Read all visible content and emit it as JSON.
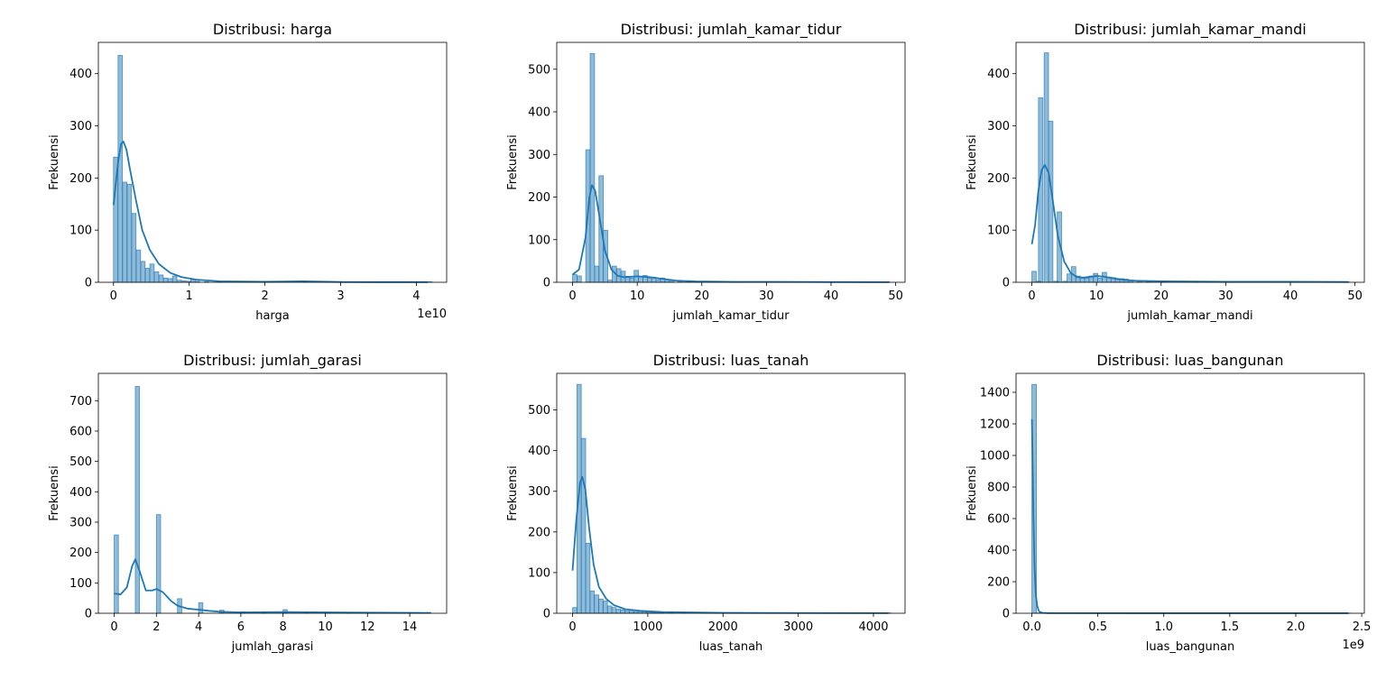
{
  "style": {
    "bar_color": "#1f77b4",
    "kde_color": "#1f77b4"
  },
  "chart_data": [
    {
      "type": "bar",
      "title": "Distribusi: harga",
      "xlabel": "harga",
      "ylabel": "Frekuensi",
      "offset_label": "1e10",
      "xlim": [
        -0.2,
        4.4
      ],
      "ylim": [
        0,
        460
      ],
      "xticks": [
        0,
        1,
        2,
        3,
        4
      ],
      "xtick_labels": [
        "0",
        "1",
        "2",
        "3",
        "4"
      ],
      "yticks": [
        0,
        100,
        200,
        300,
        400
      ],
      "ytick_labels": [
        "0",
        "100",
        "200",
        "300",
        "400"
      ],
      "bin_width": 0.0575,
      "bins": [
        [
          0.0,
          240
        ],
        [
          0.06,
          435
        ],
        [
          0.12,
          192
        ],
        [
          0.18,
          188
        ],
        [
          0.24,
          132
        ],
        [
          0.3,
          62
        ],
        [
          0.36,
          40
        ],
        [
          0.42,
          27
        ],
        [
          0.48,
          35
        ],
        [
          0.54,
          20
        ],
        [
          0.6,
          14
        ],
        [
          0.66,
          8
        ],
        [
          0.72,
          7
        ],
        [
          0.78,
          12
        ],
        [
          0.84,
          4
        ],
        [
          0.9,
          3
        ],
        [
          0.96,
          2
        ],
        [
          1.02,
          5
        ],
        [
          1.08,
          2
        ],
        [
          1.2,
          1
        ],
        [
          1.38,
          1
        ],
        [
          2.5,
          1
        ],
        [
          4.15,
          1
        ]
      ],
      "kde": [
        [
          0,
          148
        ],
        [
          0.06,
          230
        ],
        [
          0.1,
          265
        ],
        [
          0.13,
          270
        ],
        [
          0.17,
          255
        ],
        [
          0.22,
          215
        ],
        [
          0.3,
          155
        ],
        [
          0.38,
          100
        ],
        [
          0.48,
          62
        ],
        [
          0.6,
          35
        ],
        [
          0.75,
          18
        ],
        [
          0.9,
          10
        ],
        [
          1.1,
          5
        ],
        [
          1.4,
          2
        ],
        [
          2.0,
          1
        ],
        [
          2.5,
          2
        ],
        [
          3.0,
          0.5
        ],
        [
          3.5,
          0.3
        ],
        [
          4.15,
          0.3
        ]
      ]
    },
    {
      "type": "bar",
      "title": "Distribusi: jumlah_kamar_tidur",
      "xlabel": "jumlah_kamar_tidur",
      "ylabel": "Frekuensi",
      "offset_label": "",
      "xlim": [
        -2.45,
        51.45
      ],
      "ylim": [
        0,
        563
      ],
      "xticks": [
        0,
        10,
        20,
        30,
        40,
        50
      ],
      "xtick_labels": [
        "0",
        "10",
        "20",
        "30",
        "40",
        "50"
      ],
      "yticks": [
        0,
        100,
        200,
        300,
        400,
        500
      ],
      "ytick_labels": [
        "0",
        "100",
        "200",
        "300",
        "400",
        "500"
      ],
      "bin_width": 0.68,
      "bins": [
        [
          0.0,
          18
        ],
        [
          0.68,
          15
        ],
        [
          2.04,
          311
        ],
        [
          2.72,
          537
        ],
        [
          3.4,
          38
        ],
        [
          4.08,
          250
        ],
        [
          4.76,
          122
        ],
        [
          5.44,
          5
        ],
        [
          6.12,
          38
        ],
        [
          6.8,
          32
        ],
        [
          7.48,
          26
        ],
        [
          8.16,
          14
        ],
        [
          8.84,
          10
        ],
        [
          9.52,
          28
        ],
        [
          10.2,
          14
        ],
        [
          10.88,
          16
        ],
        [
          11.56,
          10
        ],
        [
          12.24,
          12
        ],
        [
          12.92,
          6
        ],
        [
          13.6,
          10
        ],
        [
          14.28,
          6
        ],
        [
          15.0,
          4
        ],
        [
          16.3,
          3
        ],
        [
          17.7,
          2
        ],
        [
          19.0,
          2
        ],
        [
          21.0,
          1
        ],
        [
          25.0,
          1
        ],
        [
          30.0,
          1
        ],
        [
          35.0,
          1
        ],
        [
          40.0,
          1
        ],
        [
          45.0,
          1
        ],
        [
          48.4,
          1
        ]
      ],
      "kde": [
        [
          0,
          18
        ],
        [
          1,
          30
        ],
        [
          2,
          105
        ],
        [
          2.6,
          200
        ],
        [
          3,
          228
        ],
        [
          3.5,
          215
        ],
        [
          4.2,
          150
        ],
        [
          5,
          75
        ],
        [
          6,
          30
        ],
        [
          7,
          15
        ],
        [
          8,
          12
        ],
        [
          10,
          14
        ],
        [
          12,
          12
        ],
        [
          14,
          8
        ],
        [
          16,
          4
        ],
        [
          19,
          2
        ],
        [
          25,
          1
        ],
        [
          30,
          1
        ],
        [
          40,
          0.5
        ],
        [
          49,
          0.3
        ]
      ]
    },
    {
      "type": "bar",
      "title": "Distribusi: jumlah_kamar_mandi",
      "xlabel": "jumlah_kamar_mandi",
      "ylabel": "Frekuensi",
      "offset_label": "",
      "xlim": [
        -2.45,
        51.45
      ],
      "ylim": [
        0,
        460
      ],
      "xticks": [
        0,
        10,
        20,
        30,
        40,
        50
      ],
      "xtick_labels": [
        "0",
        "10",
        "20",
        "30",
        "40",
        "50"
      ],
      "yticks": [
        0,
        100,
        200,
        300,
        400
      ],
      "ytick_labels": [
        "0",
        "100",
        "200",
        "300",
        "400"
      ],
      "bin_width": 0.68,
      "bins": [
        [
          0.0,
          21
        ],
        [
          0.68,
          2
        ],
        [
          1.02,
          354
        ],
        [
          1.9,
          440
        ],
        [
          2.58,
          309
        ],
        [
          3.4,
          2
        ],
        [
          3.92,
          135
        ],
        [
          4.76,
          2
        ],
        [
          5.44,
          16
        ],
        [
          6.12,
          30
        ],
        [
          6.8,
          12
        ],
        [
          7.48,
          8
        ],
        [
          8.16,
          8
        ],
        [
          8.84,
          12
        ],
        [
          9.52,
          17
        ],
        [
          10.2,
          8
        ],
        [
          10.88,
          19
        ],
        [
          11.56,
          10
        ],
        [
          12.24,
          9
        ],
        [
          12.92,
          5
        ],
        [
          13.6,
          7
        ],
        [
          14.28,
          6
        ],
        [
          15.0,
          4
        ],
        [
          16.3,
          3
        ],
        [
          17.7,
          2
        ],
        [
          20.0,
          1
        ],
        [
          25.0,
          1
        ],
        [
          30.0,
          1
        ],
        [
          38.0,
          1
        ],
        [
          48.4,
          1
        ]
      ],
      "kde": [
        [
          0,
          73
        ],
        [
          0.5,
          110
        ],
        [
          1,
          175
        ],
        [
          1.5,
          215
        ],
        [
          2,
          225
        ],
        [
          2.6,
          210
        ],
        [
          3.2,
          160
        ],
        [
          4,
          90
        ],
        [
          5,
          40
        ],
        [
          6,
          18
        ],
        [
          7,
          10
        ],
        [
          8,
          9
        ],
        [
          10,
          12
        ],
        [
          11,
          11
        ],
        [
          12,
          9
        ],
        [
          14,
          5
        ],
        [
          16,
          3
        ],
        [
          20,
          2
        ],
        [
          30,
          1
        ],
        [
          40,
          1
        ],
        [
          49,
          0.5
        ]
      ]
    },
    {
      "type": "bar",
      "title": "Distribusi: jumlah_garasi",
      "xlabel": "jumlah_garasi",
      "ylabel": "Frekuensi",
      "offset_label": "",
      "xlim": [
        -0.75,
        15.75
      ],
      "ylim": [
        0,
        790
      ],
      "xticks": [
        0,
        2,
        4,
        6,
        8,
        10,
        12,
        14
      ],
      "xtick_labels": [
        "0",
        "2",
        "4",
        "6",
        "8",
        "10",
        "12",
        "14"
      ],
      "yticks": [
        0,
        100,
        200,
        300,
        400,
        500,
        600,
        700
      ],
      "ytick_labels": [
        "0",
        "100",
        "200",
        "300",
        "400",
        "500",
        "600",
        "700"
      ],
      "bin_width": 0.2,
      "bins": [
        [
          0.0,
          258
        ],
        [
          1.0,
          747
        ],
        [
          2.0,
          325
        ],
        [
          3.0,
          48
        ],
        [
          4.0,
          35
        ],
        [
          5.0,
          10
        ],
        [
          6.0,
          5
        ],
        [
          7.0,
          3
        ],
        [
          8.0,
          12
        ],
        [
          9.0,
          2
        ],
        [
          10.0,
          4
        ],
        [
          11.0,
          1
        ],
        [
          12.0,
          2
        ],
        [
          14.0,
          1
        ],
        [
          14.8,
          2
        ]
      ],
      "kde": [
        [
          0,
          65
        ],
        [
          0.3,
          62
        ],
        [
          0.6,
          85
        ],
        [
          0.85,
          155
        ],
        [
          1,
          178
        ],
        [
          1.2,
          140
        ],
        [
          1.5,
          75
        ],
        [
          1.8,
          75
        ],
        [
          2,
          80
        ],
        [
          2.3,
          70
        ],
        [
          2.7,
          40
        ],
        [
          3,
          25
        ],
        [
          3.5,
          15
        ],
        [
          4,
          12
        ],
        [
          4.5,
          8
        ],
        [
          5,
          5
        ],
        [
          6,
          3
        ],
        [
          8,
          4
        ],
        [
          10,
          3
        ],
        [
          12,
          2
        ],
        [
          15,
          1
        ]
      ]
    },
    {
      "type": "bar",
      "title": "Distribusi: luas_tanah",
      "xlabel": "luas_tanah",
      "ylabel": "Frekuensi",
      "offset_label": "",
      "xlim": [
        -210,
        4420
      ],
      "ylim": [
        0,
        590
      ],
      "xticks": [
        0,
        1000,
        2000,
        3000,
        4000
      ],
      "xtick_labels": [
        "0",
        "1000",
        "2000",
        "3000",
        "4000"
      ],
      "yticks": [
        0,
        100,
        200,
        300,
        400,
        500
      ],
      "ytick_labels": [
        "0",
        "100",
        "200",
        "300",
        "400",
        "500"
      ],
      "bin_width": 58,
      "bins": [
        [
          0,
          14
        ],
        [
          58,
          563
        ],
        [
          116,
          430
        ],
        [
          174,
          172
        ],
        [
          232,
          55
        ],
        [
          290,
          45
        ],
        [
          348,
          35
        ],
        [
          406,
          30
        ],
        [
          464,
          18
        ],
        [
          522,
          14
        ],
        [
          580,
          10
        ],
        [
          638,
          8
        ],
        [
          696,
          6
        ],
        [
          754,
          5
        ],
        [
          812,
          4
        ],
        [
          870,
          4
        ],
        [
          928,
          3
        ],
        [
          986,
          3
        ],
        [
          1044,
          2
        ],
        [
          1102,
          2
        ],
        [
          1160,
          1
        ],
        [
          1276,
          1
        ],
        [
          1450,
          1
        ],
        [
          1740,
          1
        ],
        [
          2030,
          1
        ],
        [
          2320,
          1
        ],
        [
          2610,
          1
        ],
        [
          2900,
          1
        ],
        [
          3190,
          1
        ],
        [
          4060,
          1
        ],
        [
          4170,
          1
        ]
      ],
      "kde": [
        [
          0,
          105
        ],
        [
          50,
          230
        ],
        [
          100,
          322
        ],
        [
          130,
          335
        ],
        [
          170,
          305
        ],
        [
          220,
          210
        ],
        [
          280,
          120
        ],
        [
          350,
          65
        ],
        [
          450,
          35
        ],
        [
          550,
          20
        ],
        [
          700,
          10
        ],
        [
          900,
          6
        ],
        [
          1200,
          3
        ],
        [
          2000,
          1
        ],
        [
          3000,
          0.5
        ],
        [
          4200,
          0.3
        ]
      ]
    },
    {
      "type": "bar",
      "title": "Distribusi: luas_bangunan",
      "xlabel": "luas_bangunan",
      "ylabel": "Frekuensi",
      "offset_label": "1e9",
      "xlim": [
        -0.12,
        2.52
      ],
      "ylim": [
        0,
        1520
      ],
      "xticks": [
        0.0,
        0.5,
        1.0,
        1.5,
        2.0,
        2.5
      ],
      "xtick_labels": [
        "0.0",
        "0.5",
        "1.0",
        "1.5",
        "2.0",
        "2.5"
      ],
      "yticks": [
        0,
        200,
        400,
        600,
        800,
        1000,
        1200,
        1400
      ],
      "ytick_labels": [
        "0",
        "200",
        "400",
        "600",
        "800",
        "1000",
        "1200",
        "1400"
      ],
      "bin_width": 0.0345,
      "bins": [
        [
          0.0,
          1450
        ],
        [
          0.0345,
          2
        ],
        [
          2.38,
          1
        ]
      ],
      "kde": [
        [
          0.0,
          1230
        ],
        [
          0.005,
          1000
        ],
        [
          0.012,
          600
        ],
        [
          0.02,
          300
        ],
        [
          0.03,
          120
        ],
        [
          0.04,
          50
        ],
        [
          0.05,
          20
        ],
        [
          0.06,
          8
        ],
        [
          0.08,
          3
        ],
        [
          0.12,
          1
        ],
        [
          0.3,
          0.5
        ],
        [
          1.0,
          0.3
        ],
        [
          2.4,
          0.3
        ]
      ]
    }
  ]
}
